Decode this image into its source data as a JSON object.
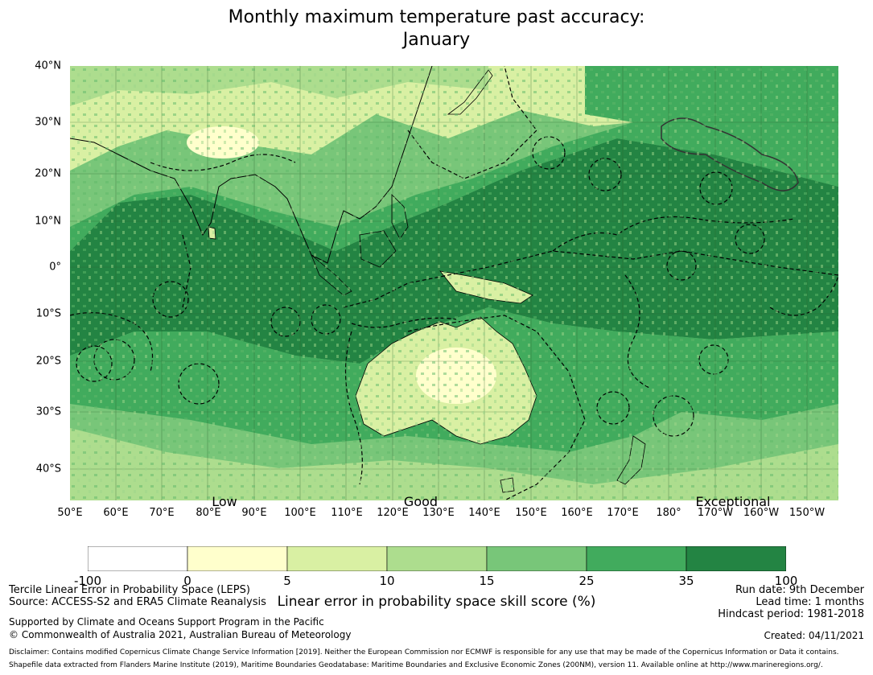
{
  "title": {
    "line1": "Monthly maximum temperature past accuracy:",
    "line2": "January"
  },
  "map": {
    "lat_labels": [
      "40°N",
      "30°N",
      "20°N",
      "10°N",
      "0°",
      "10°S",
      "20°S",
      "30°S",
      "40°S"
    ],
    "lon_labels": [
      "50°E",
      "60°E",
      "70°E",
      "80°E",
      "90°E",
      "100°E",
      "110°E",
      "120°E",
      "130°E",
      "140°E",
      "150°E",
      "160°E",
      "170°E",
      "180°",
      "170°W",
      "160°W",
      "150°W"
    ],
    "skill_labels": [
      "Low",
      "Good",
      "Exceptional"
    ]
  },
  "colorbar": {
    "ticks": [
      "-100",
      "0",
      "5",
      "10",
      "15",
      "25",
      "35",
      "100"
    ],
    "colors": [
      "#ffffff",
      "#ffffcc",
      "#d9f0a3",
      "#addd8e",
      "#78c679",
      "#41ab5d",
      "#238443"
    ],
    "label": "Linear error in probability space skill score (%)"
  },
  "footer": {
    "method": "Tercile Linear Error in Probability Space (LEPS)",
    "source": "Source: ACCESS-S2 and ERA5 Climate Reanalysis",
    "support": "Supported by Climate and Oceans Support Program in the Pacific",
    "copyright": "© Commonwealth of Australia 2021, Australian Bureau of Meteorology",
    "run_date": "Run date: 9th December",
    "lead_time": "Lead time: 1 months",
    "hindcast": "Hindcast period: 1981-2018",
    "created": "Created: 04/11/2021",
    "disclaimer": "Disclaimer: Contains modified Copernicus Climate Change Service Information [2019]. Neither the European Commission nor ECMWF is responsible for any use that may be made of the Copernicus Information or Data it contains.",
    "shapefile": "Shapefile data extracted from Flanders Marine Institute (2019), Maritime Boundaries Geodatabase: Maritime Boundaries and Exclusive Economic Zones (200NM), version 11. Available online at http://www.marineregions.org/."
  }
}
